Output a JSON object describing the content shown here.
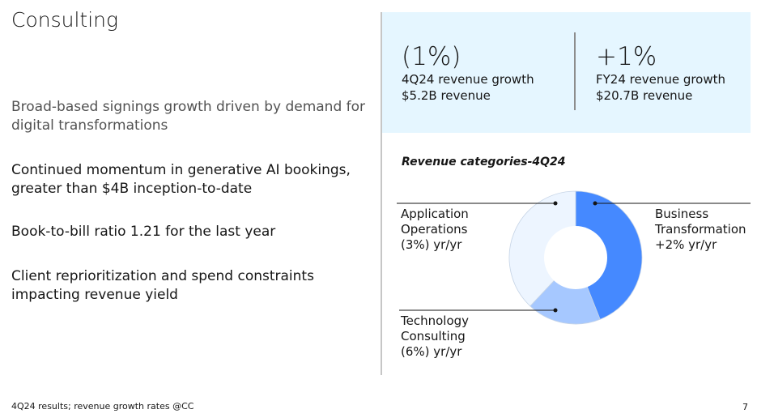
{
  "slide": {
    "title": "Consulting",
    "bullets": [
      "Broad-based signings growth driven by demand for digital transformations",
      "Continued momentum in generative AI bookings, greater than $4B inception-to-date",
      "Book-to-bill ratio 1.21 for the last year",
      "Client reprioritization and spend constraints impacting revenue yield"
    ],
    "footer_note": "4Q24 results; revenue growth rates @CC",
    "page_number": "7"
  },
  "metrics": [
    {
      "value": "(1%)",
      "line1": "4Q24 revenue growth",
      "line2": "$5.2B revenue"
    },
    {
      "value": "+1%",
      "line1": "FY24 revenue growth",
      "line2": "$20.7B revenue"
    }
  ],
  "chart_data": {
    "type": "pie",
    "title": "Revenue categories-4Q24",
    "categories": [
      "Business Transformation",
      "Technology Consulting",
      "Application Operations"
    ],
    "values": [
      44,
      18,
      38
    ],
    "colors": [
      "#4589ff",
      "#a6c8ff",
      "#edf5ff"
    ],
    "labels": [
      {
        "line1": "Business",
        "line2": "Transformation",
        "line3": "+2% yr/yr"
      },
      {
        "line1": "Technology",
        "line2": "Consulting",
        "line3": "(6%) yr/yr"
      },
      {
        "line1": "Application",
        "line2": "Operations",
        "line3": "(3%) yr/yr"
      }
    ]
  }
}
